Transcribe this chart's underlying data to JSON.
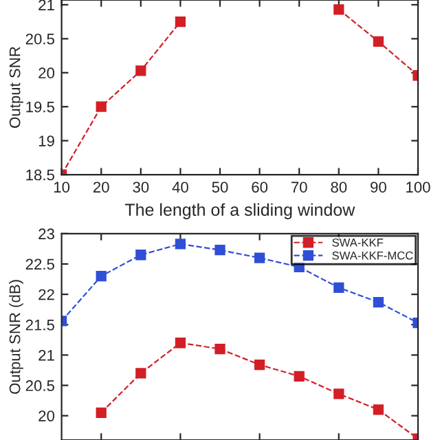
{
  "chart_data": [
    {
      "type": "line",
      "xlabel": "The length of a sliding window",
      "ylabel": "Output SNR",
      "x": [
        10,
        20,
        30,
        40,
        50,
        60,
        70,
        80,
        90,
        100
      ],
      "series": [
        {
          "color": "#d21f26",
          "values": [
            18.5,
            19.5,
            20.03,
            20.75,
            null,
            null,
            null,
            20.93,
            20.46,
            19.96
          ]
        }
      ],
      "xlim": [
        10,
        100
      ],
      "xticks": [
        10,
        20,
        30,
        40,
        50,
        60,
        70,
        80,
        90,
        100
      ],
      "ylim": [
        18.5,
        21.07
      ],
      "yticks": [
        18.5,
        19,
        19.5,
        20,
        20.5,
        21
      ],
      "marker": "square",
      "line_style": "dashed",
      "grid": false,
      "legend": false
    },
    {
      "type": "line",
      "ylabel": "Output SNR (dB)",
      "x": [
        10,
        20,
        30,
        40,
        50,
        60,
        70,
        80,
        90,
        100
      ],
      "series": [
        {
          "name": "SWA-KKF",
          "color": "#d21f26",
          "values": [
            null,
            20.05,
            20.7,
            21.2,
            21.1,
            20.84,
            20.65,
            20.36,
            20.1,
            19.62
          ]
        },
        {
          "name": "SWA-KKF-MCC",
          "color": "#2f4fd6",
          "values": [
            21.56,
            22.3,
            22.65,
            22.83,
            22.73,
            22.6,
            22.45,
            22.11,
            21.87,
            21.53
          ]
        }
      ],
      "xlim": [
        10,
        100
      ],
      "ylim": [
        19.6,
        23
      ],
      "yticks": [
        20,
        20.5,
        21,
        21.5,
        22,
        22.5,
        23
      ],
      "marker": "square",
      "line_style": "dashed",
      "grid": false,
      "legend": "top right",
      "tick_labels": "y"
    }
  ]
}
